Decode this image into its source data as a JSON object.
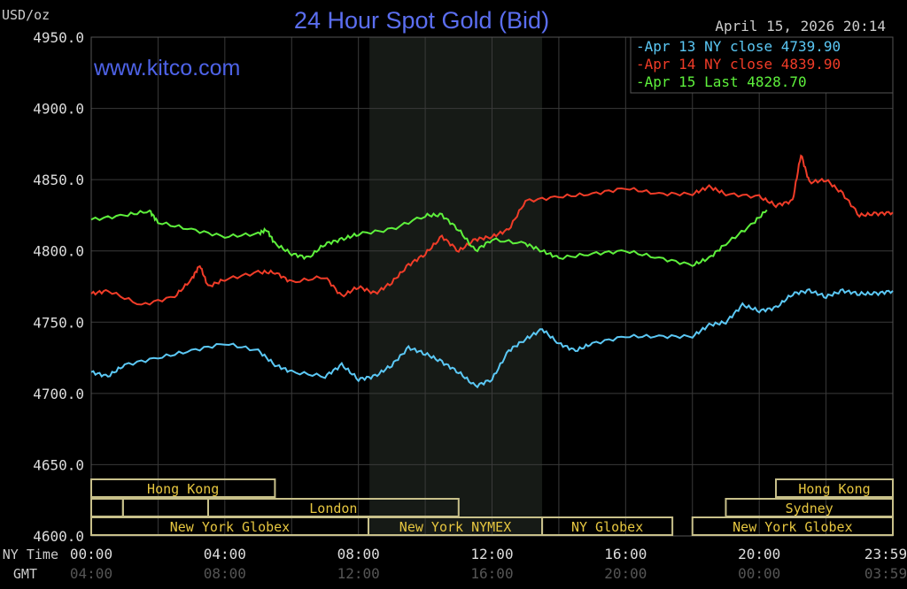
{
  "chart_data": {
    "type": "line",
    "title": "24 Hour Spot Gold (Bid)",
    "ylabel": "USD/oz",
    "watermark": "www.kitco.com",
    "timestamp": "April 15, 2026 20:14",
    "ylim": [
      4600,
      4950
    ],
    "xlim_hours": [
      0,
      24
    ],
    "y_ticks": [
      "4950.0",
      "4900.0",
      "4850.0",
      "4800.0",
      "4750.0",
      "4700.0",
      "4650.0",
      "4600.0"
    ],
    "y_tick_values": [
      4950,
      4900,
      4850,
      4800,
      4750,
      4700,
      4650,
      4600
    ],
    "x_axis_label_ny": "NY Time",
    "x_axis_label_gmt": "GMT",
    "x_ticks_ny": [
      "00:00",
      "04:00",
      "08:00",
      "12:00",
      "16:00",
      "20:00",
      "23:59"
    ],
    "x_ticks_gmt": [
      "04:00",
      "08:00",
      "12:00",
      "16:00",
      "20:00",
      "00:00",
      "03:59"
    ],
    "x_tick_hours": [
      0,
      4,
      8,
      12,
      16,
      20,
      24
    ],
    "grid": true,
    "legend_position": "top-right",
    "shaded_hours": [
      8.33,
      13.5
    ],
    "series": [
      {
        "name": "Apr 13 NY close 4739.90",
        "color": "#5bc8f5",
        "x": [
          0,
          0.5,
          1,
          2,
          3,
          4,
          5,
          5.5,
          6,
          7,
          7.5,
          8,
          8.5,
          9,
          9.5,
          10,
          10.5,
          11,
          11.5,
          12,
          12.5,
          13,
          13.5,
          14,
          14.5,
          15,
          16,
          17,
          18,
          18.5,
          19,
          19.5,
          20,
          20.5,
          21,
          21.5,
          22,
          22.5,
          23,
          23.5,
          24
        ],
        "y": [
          4715,
          4712,
          4720,
          4725,
          4730,
          4735,
          4730,
          4720,
          4715,
          4712,
          4720,
          4710,
          4712,
          4720,
          4732,
          4728,
          4722,
          4715,
          4705,
          4710,
          4730,
          4738,
          4745,
          4735,
          4730,
          4735,
          4740,
          4740,
          4740,
          4748,
          4750,
          4762,
          4758,
          4760,
          4770,
          4772,
          4768,
          4772,
          4770,
          4770,
          4772
        ]
      },
      {
        "name": "Apr 14 NY close 4839.90",
        "color": "#f03c28",
        "x": [
          0,
          0.5,
          1.5,
          2.5,
          3,
          3.25,
          3.5,
          4,
          5,
          5.5,
          6,
          7,
          7.5,
          8,
          8.5,
          9,
          9.5,
          10,
          10.5,
          11,
          11.5,
          12,
          12.5,
          13,
          14,
          15,
          16,
          17,
          18,
          18.5,
          19,
          20,
          20.5,
          21,
          21.25,
          21.5,
          22,
          22.5,
          23,
          23.5,
          24
        ],
        "y": [
          4770,
          4772,
          4762,
          4768,
          4780,
          4790,
          4775,
          4780,
          4785,
          4785,
          4778,
          4782,
          4768,
          4775,
          4770,
          4778,
          4790,
          4798,
          4810,
          4800,
          4808,
          4810,
          4815,
          4835,
          4838,
          4840,
          4844,
          4840,
          4840,
          4845,
          4840,
          4838,
          4832,
          4835,
          4868,
          4848,
          4850,
          4840,
          4825,
          4826,
          4827
        ]
      },
      {
        "name": "Apr 15 Last 4828.70",
        "color": "#5ef03c",
        "x": [
          0,
          1,
          1.75,
          2,
          3,
          4,
          5,
          5.25,
          5.5,
          6,
          6.5,
          7,
          7.5,
          8,
          9,
          10,
          10.5,
          11,
          11.5,
          12,
          13,
          13.5,
          14,
          15,
          16,
          17,
          18,
          18.5,
          19,
          19.75,
          20.23
        ],
        "y": [
          4822,
          4825,
          4828,
          4820,
          4815,
          4810,
          4812,
          4815,
          4805,
          4798,
          4795,
          4805,
          4808,
          4812,
          4815,
          4825,
          4825,
          4815,
          4800,
          4808,
          4805,
          4800,
          4795,
          4798,
          4800,
          4795,
          4790,
          4795,
          4805,
          4818,
          4828.7
        ]
      }
    ],
    "legend": {
      "items": [
        {
          "label": "Apr 13 NY close",
          "value": "4739.90"
        },
        {
          "label": "Apr 14 NY close",
          "value": "4839.90"
        },
        {
          "label": "Apr 15 Last",
          "value": "4828.70"
        }
      ]
    },
    "sessions": [
      {
        "name": "Hong Kong",
        "row": 0,
        "start": 0,
        "end": 5.5
      },
      {
        "name": "",
        "row": 1,
        "start": 0,
        "end": 0.95
      },
      {
        "name": "",
        "row": 1,
        "start": 0.95,
        "end": 3.5
      },
      {
        "name": "London",
        "row": 1,
        "start": 3.5,
        "end": 11.0
      },
      {
        "name": "New York Globex",
        "row": 2,
        "start": 0,
        "end": 8.3
      },
      {
        "name": "New York NYMEX",
        "row": 2,
        "start": 8.3,
        "end": 13.5
      },
      {
        "name": "NY Globex",
        "row": 2,
        "start": 13.5,
        "end": 17.4
      },
      {
        "name": "Hong Kong",
        "row": 0,
        "start": 20.5,
        "end": 24
      },
      {
        "name": "Sydney",
        "row": 1,
        "start": 19,
        "end": 24
      },
      {
        "name": "New York Globex",
        "row": 2,
        "start": 18,
        "end": 24
      }
    ]
  }
}
